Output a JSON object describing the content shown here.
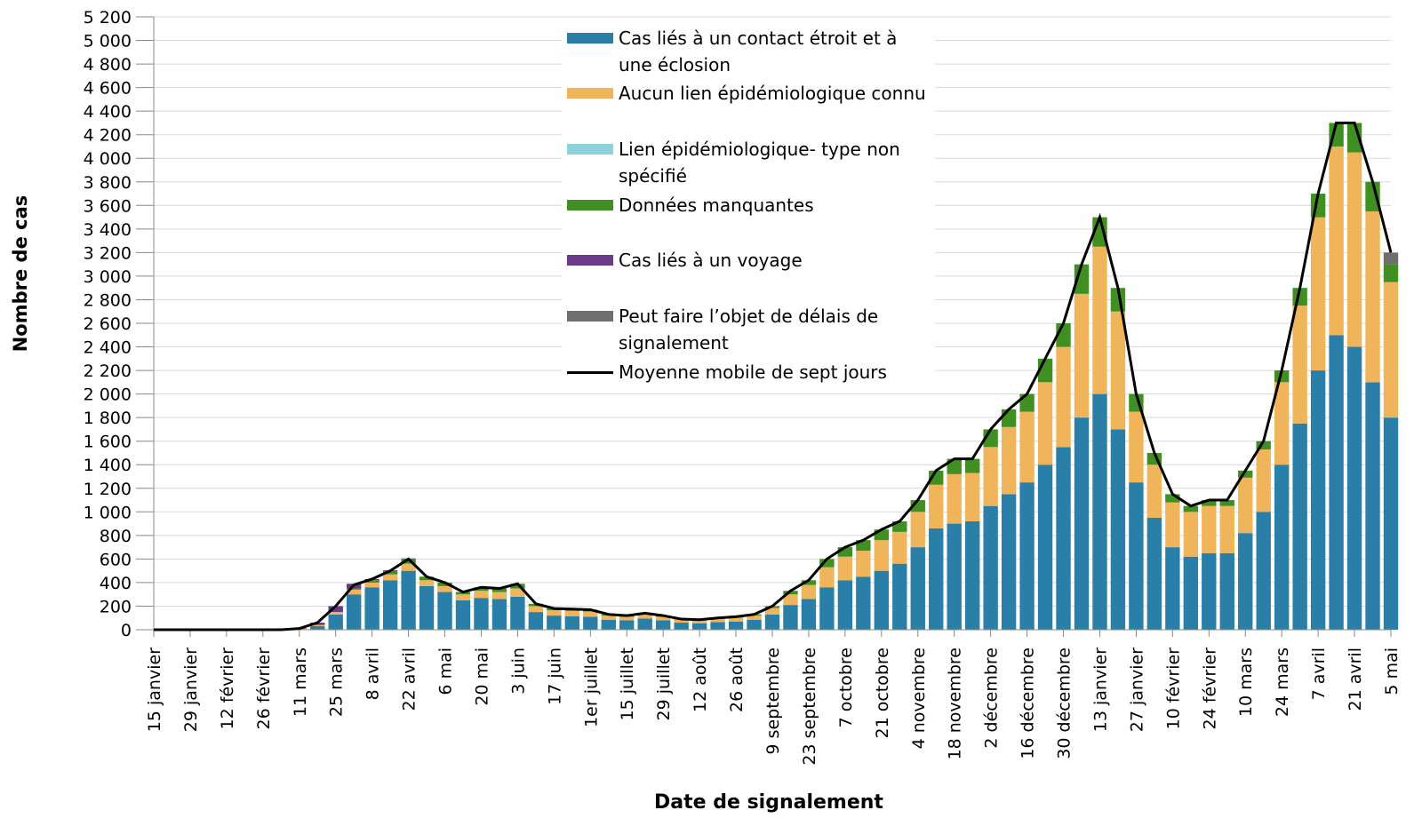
{
  "chart_data": {
    "type": "bar",
    "stacked": true,
    "x_label": "Date de signalement",
    "y_label": "Nombre de cas",
    "categories": [
      "15 janvier",
      null,
      "29 janvier",
      null,
      "12 février",
      null,
      "26 février",
      null,
      "11 mars",
      null,
      "25 mars",
      null,
      "8 avril",
      null,
      "22 avril",
      null,
      "6 mai",
      null,
      "20 mai",
      null,
      "3 juin",
      null,
      "17 juin",
      null,
      "1er juillet",
      null,
      "15 juillet",
      null,
      "29 juillet",
      null,
      "12 août",
      null,
      "26 août",
      null,
      "9 septembre",
      null,
      "23 septembre",
      null,
      "7 octobre",
      null,
      "21 octobre",
      null,
      "4 novembre",
      null,
      "18 novembre",
      null,
      "2 décembre",
      null,
      "16 décembre",
      null,
      "30 décembre",
      null,
      "13 janvier",
      null,
      "27 janvier",
      null,
      "10 février",
      null,
      "24 février",
      null,
      "10 mars",
      null,
      "24 mars",
      null,
      "7 avril",
      null,
      "21 avril",
      null,
      "5 mai"
    ],
    "series": [
      {
        "name": "Cas liés à un contact étroit et à une éclosion",
        "color": "#2a7fa8",
        "values": [
          0,
          0,
          0,
          0,
          0,
          0,
          0,
          0,
          5,
          30,
          130,
          300,
          360,
          420,
          500,
          370,
          320,
          250,
          270,
          260,
          280,
          150,
          120,
          115,
          110,
          85,
          80,
          95,
          80,
          60,
          55,
          65,
          70,
          85,
          130,
          210,
          260,
          360,
          420,
          450,
          500,
          560,
          700,
          860,
          900,
          920,
          1050,
          1150,
          1250,
          1400,
          1550,
          1800,
          2000,
          1700,
          1250,
          950,
          700,
          620,
          650,
          650,
          820,
          1000,
          1400,
          1750,
          2200,
          2500,
          2400,
          2100,
          1800
        ]
      },
      {
        "name": "Aucun lien épidémiologique connu",
        "color": "#f0b55a",
        "values": [
          0,
          0,
          0,
          0,
          0,
          0,
          0,
          0,
          2,
          10,
          20,
          40,
          40,
          50,
          60,
          50,
          50,
          50,
          60,
          60,
          70,
          50,
          45,
          45,
          45,
          35,
          30,
          35,
          30,
          25,
          25,
          30,
          32,
          35,
          55,
          90,
          120,
          170,
          200,
          220,
          260,
          270,
          300,
          370,
          420,
          410,
          500,
          570,
          600,
          700,
          850,
          1050,
          1250,
          1000,
          600,
          450,
          380,
          380,
          400,
          400,
          470,
          530,
          700,
          1000,
          1300,
          1600,
          1650,
          1450,
          1150
        ]
      },
      {
        "name": "Lien épidémiologique- type non spécifié",
        "color": "#8fd0de",
        "values": [
          0,
          0,
          0,
          0,
          0,
          0,
          0,
          0,
          0,
          0,
          0,
          0,
          0,
          0,
          0,
          0,
          0,
          0,
          0,
          0,
          0,
          0,
          0,
          0,
          0,
          0,
          0,
          0,
          0,
          0,
          0,
          0,
          0,
          0,
          0,
          0,
          0,
          0,
          0,
          0,
          0,
          0,
          0,
          0,
          0,
          0,
          0,
          0,
          0,
          0,
          0,
          0,
          0,
          0,
          0,
          0,
          0,
          0,
          0,
          0,
          0,
          0,
          0,
          0,
          0,
          0,
          0,
          0,
          0
        ]
      },
      {
        "name": "Données manquantes",
        "color": "#3f8f22",
        "values": [
          0,
          0,
          0,
          0,
          0,
          0,
          0,
          0,
          0,
          0,
          0,
          10,
          20,
          30,
          40,
          30,
          30,
          20,
          30,
          30,
          40,
          20,
          15,
          15,
          15,
          10,
          10,
          10,
          10,
          5,
          5,
          5,
          8,
          10,
          15,
          30,
          40,
          70,
          80,
          90,
          90,
          90,
          100,
          120,
          130,
          120,
          150,
          150,
          150,
          200,
          200,
          250,
          250,
          200,
          150,
          100,
          70,
          50,
          50,
          50,
          60,
          70,
          100,
          150,
          200,
          200,
          250,
          250,
          150
        ]
      },
      {
        "name": "Cas liés à un voyage",
        "color": "#6b3a8a",
        "values": [
          0,
          0,
          0,
          0,
          0,
          0,
          0,
          0,
          5,
          20,
          50,
          40,
          10,
          5,
          5,
          0,
          0,
          0,
          0,
          0,
          0,
          0,
          0,
          0,
          0,
          0,
          0,
          0,
          0,
          0,
          0,
          0,
          0,
          0,
          0,
          0,
          0,
          0,
          0,
          0,
          0,
          0,
          0,
          0,
          0,
          0,
          0,
          0,
          0,
          0,
          0,
          0,
          0,
          0,
          0,
          0,
          0,
          0,
          0,
          0,
          0,
          0,
          0,
          0,
          0,
          0,
          0,
          0,
          0
        ]
      },
      {
        "name": "Peut faire l’objet de délais de signalement",
        "color": "#6e6e6e",
        "values": [
          0,
          0,
          0,
          0,
          0,
          0,
          0,
          0,
          0,
          0,
          0,
          0,
          0,
          0,
          0,
          0,
          0,
          0,
          0,
          0,
          0,
          0,
          0,
          0,
          0,
          0,
          0,
          0,
          0,
          0,
          0,
          0,
          0,
          0,
          0,
          0,
          0,
          0,
          0,
          0,
          0,
          0,
          0,
          0,
          0,
          0,
          0,
          0,
          0,
          0,
          0,
          0,
          0,
          0,
          0,
          0,
          0,
          0,
          0,
          0,
          0,
          0,
          0,
          0,
          0,
          0,
          0,
          0,
          100
        ]
      },
      {
        "name": "Moyenne mobile de sept jours",
        "color": "#000000",
        "type": "line",
        "values": [
          0,
          0,
          0,
          0,
          0,
          0,
          0,
          0,
          10,
          60,
          200,
          380,
          430,
          500,
          600,
          450,
          400,
          320,
          360,
          350,
          390,
          220,
          180,
          175,
          170,
          130,
          120,
          140,
          120,
          90,
          85,
          100,
          110,
          130,
          200,
          330,
          420,
          600,
          700,
          760,
          850,
          920,
          1100,
          1350,
          1450,
          1450,
          1700,
          1870,
          2000,
          2300,
          2600,
          3100,
          3500,
          2900,
          2000,
          1500,
          1150,
          1050,
          1100,
          1100,
          1350,
          1600,
          2200,
          2900,
          3700,
          4300,
          4300,
          3800,
          3200
        ]
      }
    ],
    "ylim": [
      0,
      5200
    ],
    "yticks": [
      0,
      200,
      400,
      600,
      800,
      {
        "value": 1000,
        "label": "1 000"
      },
      {
        "value": 1200,
        "label": "1 200"
      },
      {
        "value": 1400,
        "label": "1 400"
      },
      {
        "value": 1600,
        "label": "1 600"
      },
      {
        "value": 1800,
        "label": "1 800"
      },
      {
        "value": 2000,
        "label": "2 000"
      },
      {
        "value": 2200,
        "label": "2 200"
      },
      {
        "value": 2400,
        "label": "2 400"
      },
      {
        "value": 2600,
        "label": "2 600"
      },
      {
        "value": 2800,
        "label": "2 800"
      },
      {
        "value": 3000,
        "label": "3 000"
      },
      {
        "value": 3200,
        "label": "3 200"
      },
      {
        "value": 3400,
        "label": "3 400"
      },
      {
        "value": 3600,
        "label": "3 600"
      },
      {
        "value": 3800,
        "label": "3 800"
      },
      {
        "value": 4000,
        "label": "4 000"
      },
      {
        "value": 4200,
        "label": "4 200"
      },
      {
        "value": 4400,
        "label": "4 400"
      },
      {
        "value": 4600,
        "label": "4 600"
      },
      {
        "value": 4800,
        "label": "4 800"
      },
      {
        "value": 5000,
        "label": "5 000"
      },
      {
        "value": 5200,
        "label": "5 200"
      }
    ],
    "grid": true
  }
}
